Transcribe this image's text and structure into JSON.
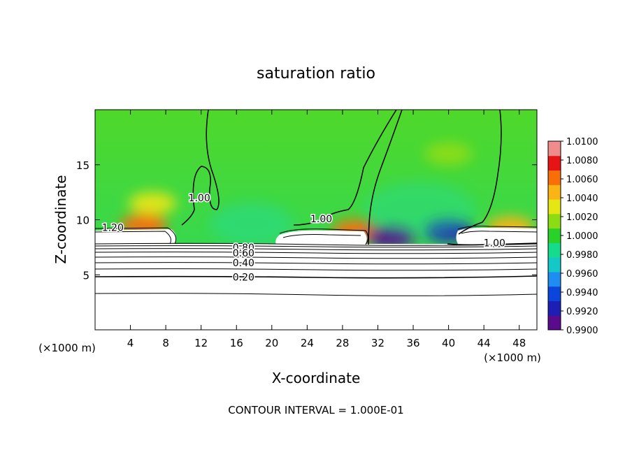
{
  "chart_data": {
    "type": "heatmap",
    "title": "saturation ratio",
    "xlabel": "X-coordinate",
    "ylabel": "Z-coordinate",
    "x_unit_left": "(×1000 m)",
    "x_unit_right": "(×1000 m)",
    "footer": "CONTOUR INTERVAL = 1.000E-01",
    "xlim": [
      0,
      50
    ],
    "ylim": [
      0,
      20
    ],
    "x_ticks": [
      4,
      8,
      12,
      16,
      20,
      24,
      28,
      32,
      36,
      40,
      44,
      48
    ],
    "y_ticks": [
      5,
      10,
      15
    ],
    "colorbar": {
      "min": 0.99,
      "max": 1.01,
      "ticks": [
        "1.0100",
        "1.0080",
        "1.0060",
        "1.0040",
        "1.0020",
        "1.0000",
        "0.9980",
        "0.9960",
        "0.9940",
        "0.9920",
        "0.9900"
      ],
      "colors": [
        "#5a0a8c",
        "#1e1eb4",
        "#0a46dc",
        "#1e8cf0",
        "#14c8c8",
        "#14dc8c",
        "#28d228",
        "#8cdc14",
        "#e6e614",
        "#fab414",
        "#fa6e0a",
        "#e61414",
        "#f08c8c"
      ]
    },
    "contour_labels": [
      {
        "text": "1.20",
        "x": 2,
        "z": 9.3
      },
      {
        "text": "1.00",
        "x": 11.8,
        "z": 12.0
      },
      {
        "text": "1.00",
        "x": 25.6,
        "z": 10.1
      },
      {
        "text": "1.00",
        "x": 45.2,
        "z": 7.9
      },
      {
        "text": "0.80",
        "x": 16.8,
        "z": 7.5
      },
      {
        "text": "0.60",
        "x": 16.8,
        "z": 7.0
      },
      {
        "text": "0.40",
        "x": 16.8,
        "z": 6.1
      },
      {
        "text": "0.20",
        "x": 16.8,
        "z": 4.8
      }
    ],
    "background_value": 0.9995,
    "ground_level_z": 8.0,
    "anomalies": [
      {
        "x": 5.5,
        "z": 9.5,
        "value": 1.0062
      },
      {
        "x": 6.5,
        "z": 11.5,
        "value": 1.0025
      },
      {
        "x": 29.5,
        "z": 9.0,
        "value": 1.0055
      },
      {
        "x": 33.5,
        "z": 8.4,
        "value": 0.9915
      },
      {
        "x": 40.0,
        "z": 9.0,
        "value": 0.9925
      },
      {
        "x": 47.0,
        "z": 9.3,
        "value": 1.005
      },
      {
        "x": 40.0,
        "z": 16.0,
        "value": 1.0012
      }
    ]
  }
}
